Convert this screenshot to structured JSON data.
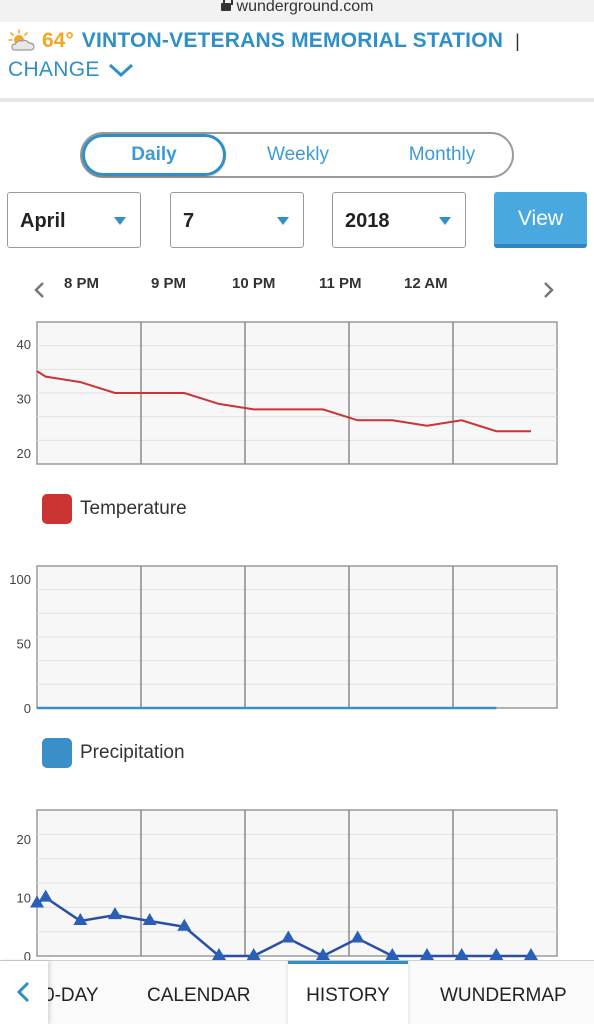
{
  "browser": {
    "url": "wunderground.com"
  },
  "station": {
    "temp": "64°",
    "name": "VINTON-VETERANS MEMORIAL STATION",
    "separator": "|",
    "change_label": "CHANGE"
  },
  "periods": [
    {
      "label": "Daily",
      "active": true
    },
    {
      "label": "Weekly",
      "active": false
    },
    {
      "label": "Monthly",
      "active": false
    }
  ],
  "date_select": {
    "month": "April",
    "day": "7",
    "year": "2018"
  },
  "view_button": "View",
  "time_labels": [
    "8 PM",
    "9 PM",
    "10 PM",
    "11 PM",
    "12 AM"
  ],
  "colors": {
    "accent": "#2f8fc7",
    "temp_orange": "#f5a623",
    "temperature": "#cc3333",
    "precipitation": "#3a8fc8",
    "wind": "#2a4da8"
  },
  "chart_data": [
    {
      "type": "line",
      "legend": "Temperature",
      "ylim": [
        18,
        44
      ],
      "yticks": [
        20,
        30,
        40
      ],
      "x_start": "19:30",
      "x_end": "00:30",
      "x": [
        "19:30",
        "19:35",
        "19:55",
        "20:15",
        "20:35",
        "20:55",
        "21:15",
        "21:35",
        "21:55",
        "22:15",
        "22:35",
        "22:55",
        "23:15",
        "23:35",
        "23:55",
        "00:15"
      ],
      "series": [
        {
          "values": [
            35,
            34,
            33,
            31,
            31,
            31,
            29,
            28,
            28,
            28,
            26,
            26,
            25,
            26,
            24,
            24
          ]
        }
      ],
      "grid": true
    },
    {
      "type": "area",
      "legend": "Precipitation",
      "ylim": [
        0,
        110
      ],
      "yticks": [
        0,
        50,
        100
      ],
      "x_start": "19:30",
      "x_end": "00:30",
      "x": [
        "19:30",
        "23:55"
      ],
      "series": [
        {
          "values": [
            0,
            0
          ]
        }
      ],
      "grid": true
    },
    {
      "type": "line",
      "ylim": [
        0,
        25
      ],
      "yticks": [
        0,
        10,
        20
      ],
      "x_start": "19:30",
      "x_end": "00:30",
      "x": [
        "19:30",
        "19:35",
        "19:55",
        "20:15",
        "20:35",
        "20:55",
        "21:15",
        "21:35",
        "21:55",
        "22:15",
        "22:35",
        "22:55",
        "23:15",
        "23:35",
        "23:55",
        "00:15"
      ],
      "series": [
        {
          "values": [
            9,
            10,
            6,
            7,
            6,
            5,
            0,
            0,
            3,
            0,
            3,
            0,
            0,
            0,
            0,
            0
          ]
        }
      ],
      "grid": true
    }
  ],
  "bottom_nav": {
    "items": [
      {
        "label": "0-DAY",
        "active": false
      },
      {
        "label": "CALENDAR",
        "active": false
      },
      {
        "label": "HISTORY",
        "active": true
      },
      {
        "label": "WUNDERMAP",
        "active": false
      }
    ]
  }
}
